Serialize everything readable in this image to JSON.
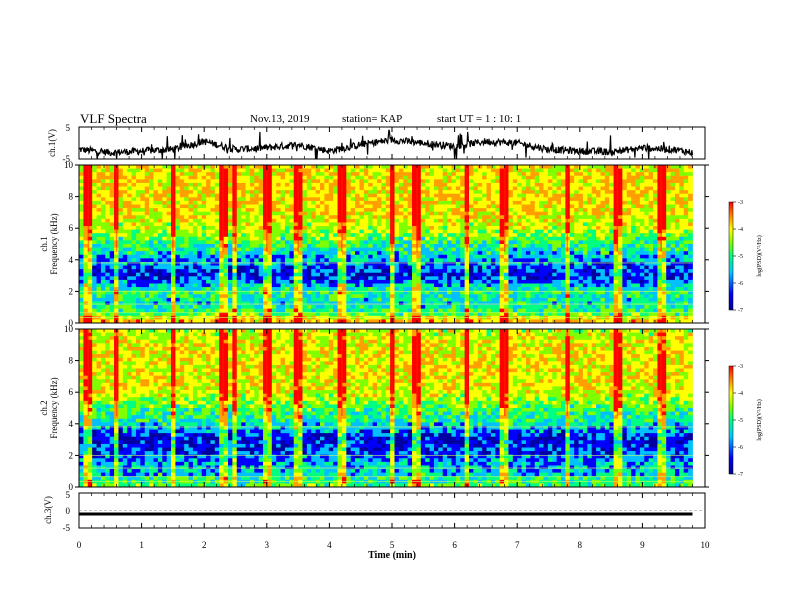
{
  "header": {
    "title": "VLF Spectra",
    "date": "Nov.13, 2019",
    "station": "station= KAP",
    "start_ut": "start  UT =  1 : 10: 1"
  },
  "colors": {
    "frame": "#000000",
    "colormap": [
      "#0000a0",
      "#0000ff",
      "#00c0ff",
      "#00ff80",
      "#80ff00",
      "#ffff00",
      "#ffa000",
      "#ff0000"
    ]
  },
  "chart_data": [
    {
      "type": "line",
      "id": "ch1-waveform",
      "ylabel": "ch.1(V)",
      "ylim": [
        -5,
        5
      ],
      "yticks": [
        "5",
        "-5"
      ],
      "xlim": [
        0,
        10
      ],
      "description_series": "continuous noisy waveform, mostly between -4 and +2 V",
      "x": [
        0,
        0.5,
        1,
        1.5,
        2,
        2.5,
        3,
        3.5,
        4,
        4.5,
        5,
        5.5,
        6,
        6.5,
        7,
        7.5,
        8,
        8.5,
        9,
        9.5,
        9.8
      ],
      "y": [
        -2,
        -3,
        -2.5,
        -2,
        0.5,
        -2,
        -1.5,
        -0.5,
        -2.5,
        -0.5,
        1,
        0,
        -1,
        0.5,
        0,
        -2,
        -2.5,
        -2.8,
        -1.5,
        -2,
        -3
      ]
    },
    {
      "type": "heatmap",
      "id": "ch1-spectrogram",
      "ylabel_line1": "ch.1",
      "ylabel_line2": "Frequency (kHz)",
      "ylim": [
        0,
        10
      ],
      "yticks": [
        "0",
        "2",
        "4",
        "6",
        "8",
        "10"
      ],
      "xlim": [
        0,
        9.8
      ],
      "colorbar": {
        "label": "log(PSD)(V²/Hz)",
        "range": [
          -7,
          -3
        ],
        "ticks": [
          "-3",
          "-4",
          "-5",
          "-6",
          "-7"
        ]
      },
      "frequency_profile_log_psd": [
        {
          "f": 0.2,
          "v": -4.0
        },
        {
          "f": 0.6,
          "v": -5.0
        },
        {
          "f": 1.2,
          "v": -5.6
        },
        {
          "f": 2.0,
          "v": -5.2
        },
        {
          "f": 3.0,
          "v": -6.4
        },
        {
          "f": 4.0,
          "v": -5.8
        },
        {
          "f": 5.0,
          "v": -5.2
        },
        {
          "f": 6.0,
          "v": -4.5
        },
        {
          "f": 7.0,
          "v": -4.2
        },
        {
          "f": 8.0,
          "v": -4.1
        },
        {
          "f": 9.0,
          "v": -4.2
        },
        {
          "f": 10.0,
          "v": -4.3
        }
      ],
      "bright_vertical_bursts_min": [
        0.15,
        0.6,
        1.5,
        2.3,
        2.5,
        3.0,
        3.5,
        4.2,
        5.0,
        5.4,
        6.2,
        6.8,
        7.8,
        8.6,
        9.3
      ]
    },
    {
      "type": "heatmap",
      "id": "ch2-spectrogram",
      "ylabel_line1": "ch.2",
      "ylabel_line2": "Frequency (kHz)",
      "ylim": [
        0,
        10
      ],
      "yticks": [
        "0",
        "2",
        "4",
        "6",
        "8",
        "10"
      ],
      "xlim": [
        0,
        9.8
      ],
      "colorbar": {
        "label": "log(PSD)(V²/Hz)",
        "range": [
          -7,
          -3
        ],
        "ticks": [
          "-3",
          "-4",
          "-5",
          "-6",
          "-7"
        ]
      },
      "frequency_profile_log_psd": [
        {
          "f": 0.2,
          "v": -5.0
        },
        {
          "f": 0.8,
          "v": -5.6
        },
        {
          "f": 1.5,
          "v": -5.8
        },
        {
          "f": 2.5,
          "v": -6.3
        },
        {
          "f": 3.0,
          "v": -6.5
        },
        {
          "f": 4.0,
          "v": -5.5
        },
        {
          "f": 5.0,
          "v": -5.0
        },
        {
          "f": 6.0,
          "v": -4.4
        },
        {
          "f": 7.0,
          "v": -4.2
        },
        {
          "f": 8.0,
          "v": -4.2
        },
        {
          "f": 9.0,
          "v": -4.3
        },
        {
          "f": 10.0,
          "v": -4.5
        }
      ],
      "bright_vertical_bursts_min": [
        0.15,
        0.6,
        1.5,
        2.3,
        2.5,
        3.0,
        3.5,
        4.2,
        5.0,
        5.4,
        6.2,
        6.8,
        7.8,
        8.6,
        9.3
      ]
    },
    {
      "type": "line",
      "id": "ch3-waveform",
      "ylabel": "ch.3(V)",
      "ylim": [
        -5,
        5
      ],
      "yticks": [
        "5",
        "0",
        "-5"
      ],
      "xlim": [
        0,
        10
      ],
      "x": [
        0,
        9.8
      ],
      "y": [
        -1,
        -1
      ]
    }
  ],
  "xaxis": {
    "label": "Time (min)",
    "ticks": [
      "0",
      "1",
      "2",
      "3",
      "4",
      "5",
      "6",
      "7",
      "8",
      "9",
      "10"
    ],
    "range": [
      0,
      10
    ]
  }
}
